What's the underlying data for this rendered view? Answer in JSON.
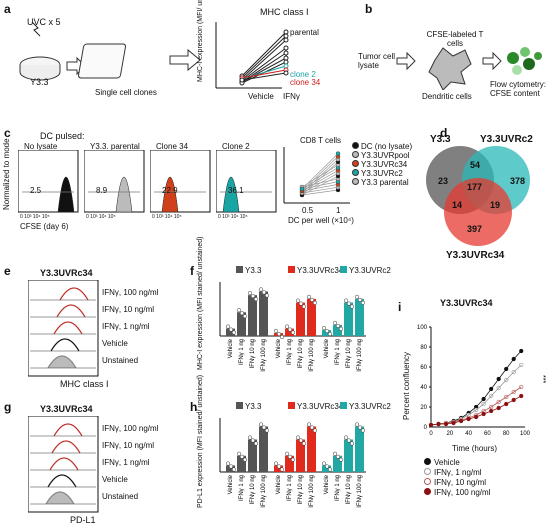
{
  "panels": {
    "a": {
      "label": "a",
      "uvc": "UVC x 5",
      "cellline": "Y3.3",
      "clones": "Single cell clones",
      "title": "MHC class I",
      "ylabel": "MHC-I expression (MFI/ unstained)",
      "xcats": [
        "Vehicle",
        "IFNγ"
      ],
      "series": [
        {
          "name": "parental",
          "color": "#222222"
        },
        {
          "name": "clone 2",
          "color": "#1aa5a5"
        },
        {
          "name": "clone 34",
          "color": "#d0201a"
        }
      ]
    },
    "b": {
      "label": "b",
      "tumor": "Tumor cell lysate",
      "tcells": "CFSE-labeled T cells",
      "dc": "Dendritic cells",
      "flow": "Flow cytometry: CFSE content"
    },
    "c": {
      "label": "c",
      "pulsed": "DC pulsed:",
      "ylabel": "Normalized to mode",
      "xlabel": "CFSE (day 6)",
      "histos": [
        {
          "title": "No lysate",
          "value": "2.5",
          "color": "#111111"
        },
        {
          "title": "Y3.3. parental",
          "value": "8.9",
          "color": "#bbbbbb"
        },
        {
          "title": "Clone 34",
          "value": "22.9",
          "color": "#d0401a"
        },
        {
          "title": "Clone 2",
          "value": "36.1",
          "color": "#1aa5a5"
        }
      ],
      "ticks": [
        "0",
        "10³",
        "10⁴",
        "10⁵"
      ],
      "plot": {
        "title": "CD8 T cells",
        "xlabel": "DC per well (×10⁴)",
        "xticks": [
          "0.5",
          "1"
        ],
        "legend": [
          "DC (no lysate)",
          "Y3.3UVRpool",
          "Y3.3UVRc34",
          "Y3.3UVRc2",
          "Y3.3 parental"
        ]
      }
    },
    "d": {
      "label": "d",
      "sets": [
        "Y3.3",
        "Y3.3UVRc2",
        "Y3.3UVRc34"
      ],
      "numbers": {
        "only_a": "23",
        "ab": "54",
        "only_b": "378",
        "abc": "177",
        "ac": "14",
        "bc": "19",
        "only_c": "397"
      }
    },
    "e": {
      "label": "e",
      "title": "Y3.3UVRc34",
      "xlabel": "MHC class I",
      "rows": [
        "IFNγ, 100 ng/ml",
        "IFNγ, 10 ng/ml",
        "IFNγ, 1 ng/ml",
        "Vehicle",
        "Unstained"
      ]
    },
    "f": {
      "label": "f",
      "ylabel": "MHC-I expression (MFI stained/ unstained)",
      "legend": [
        "Y3.3",
        "Y3.3UVRc34",
        "Y3.3UVRc2"
      ],
      "xcats": [
        "Vehicle",
        "IFNγ 1 ng",
        "IFNγ 10 ng",
        "IFNγ 100 ng"
      ],
      "colors": [
        "#555555",
        "#e02a1e",
        "#21a8a4"
      ]
    },
    "g": {
      "label": "g",
      "title": "Y3.3UVRc34",
      "xlabel": "PD-L1",
      "rows": [
        "IFNγ, 100 ng/ml",
        "IFNγ, 10 ng/ml",
        "IFNγ, 1 ng/ml",
        "Vehicle",
        "Unstained"
      ]
    },
    "h": {
      "label": "h",
      "ylabel": "PD-L1 expression (MFI stained/ unstained)",
      "legend": [
        "Y3.3",
        "Y3.3UVRc34",
        "Y3.3UVRc2"
      ],
      "xcats": [
        "Vehicle",
        "IFNγ 1 ng",
        "IFNγ 10 ng",
        "IFNγ 100 ng"
      ],
      "colors": [
        "#555555",
        "#e02a1e",
        "#21a8a4"
      ]
    },
    "i": {
      "label": "i",
      "title": "Y3.3UVRc34",
      "ylabel": "Percent confluency",
      "xlabel": "Time (hours)",
      "yticks": [
        "0",
        "20",
        "40",
        "60",
        "80",
        "100"
      ],
      "xticks": [
        "0",
        "20",
        "40",
        "60",
        "80",
        "100"
      ],
      "legend": [
        "Vehicle",
        "IFNγ, 1 ng/ml",
        "IFNγ, 10 ng/ml",
        "IFNγ, 100 ng/ml"
      ],
      "sig": "***"
    }
  },
  "chart_data": [
    {
      "type": "bar",
      "title": "",
      "ylabel": "MHC-I expression (MFI stained/ unstained)",
      "categories": [
        "Vehicle",
        "IFNγ 1 ng",
        "IFNγ 10 ng",
        "IFNγ 100 ng"
      ],
      "series": [
        {
          "name": "Y3.3",
          "values": [
            10,
            32,
            55,
            60
          ]
        },
        {
          "name": "Y3.3UVRc34",
          "values": [
            4,
            10,
            45,
            50
          ]
        },
        {
          "name": "Y3.3UVRc2",
          "values": [
            8,
            15,
            45,
            50
          ]
        }
      ]
    },
    {
      "type": "bar",
      "title": "",
      "ylabel": "PD-L1 expression (MFI stained/ unstained)",
      "categories": [
        "Vehicle",
        "IFNγ 1 ng",
        "IFNγ 10 ng",
        "IFNγ 100 ng"
      ],
      "series": [
        {
          "name": "Y3.3",
          "values": [
            1,
            2.5,
            5,
            7
          ]
        },
        {
          "name": "Y3.3UVRc34",
          "values": [
            1,
            2.5,
            5,
            7
          ]
        },
        {
          "name": "Y3.3UVRc2",
          "values": [
            1,
            2.5,
            5,
            7
          ]
        }
      ]
    },
    {
      "type": "line",
      "title": "Y3.3UVRc34",
      "xlabel": "Time (hours)",
      "ylabel": "Percent confluency",
      "ylim": [
        0,
        100
      ],
      "xlim": [
        0,
        100
      ],
      "x": [
        0,
        8,
        16,
        24,
        32,
        40,
        48,
        56,
        64,
        72,
        80,
        88,
        96
      ],
      "series": [
        {
          "name": "Vehicle",
          "values": [
            2,
            3,
            4,
            6,
            9,
            14,
            20,
            28,
            38,
            48,
            58,
            68,
            76
          ]
        },
        {
          "name": "IFNγ, 1 ng/ml",
          "values": [
            2,
            3,
            4,
            5,
            8,
            12,
            17,
            23,
            31,
            39,
            47,
            55,
            62
          ]
        },
        {
          "name": "IFNγ, 10 ng/ml",
          "values": [
            2,
            3,
            4,
            5,
            7,
            9,
            12,
            16,
            20,
            25,
            30,
            35,
            40
          ]
        },
        {
          "name": "IFNγ, 100 ng/ml",
          "values": [
            2,
            3,
            3,
            4,
            6,
            8,
            10,
            13,
            16,
            19,
            23,
            27,
            31
          ]
        }
      ]
    }
  ]
}
